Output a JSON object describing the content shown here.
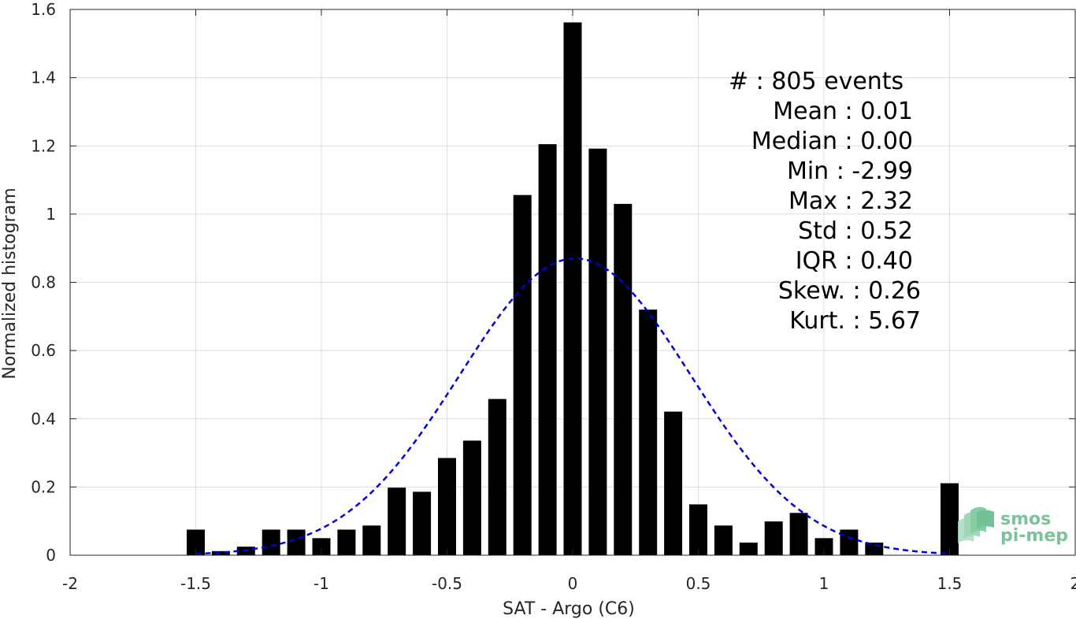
{
  "chart_data": {
    "type": "bar",
    "xlabel": "SAT - Argo (C6)",
    "ylabel": "Normalized histogram",
    "xlim": [
      -2,
      2
    ],
    "ylim": [
      0,
      1.6
    ],
    "xticks": [
      -2,
      -1.5,
      -1,
      -0.5,
      0,
      0.5,
      1,
      1.5,
      2
    ],
    "xtick_labels": [
      "-2",
      "-1.5",
      "-1",
      "-0.5",
      "0",
      "0.5",
      "1",
      "1.5",
      "2"
    ],
    "yticks": [
      0,
      0.2,
      0.4,
      0.6,
      0.8,
      1,
      1.2,
      1.4,
      1.6
    ],
    "ytick_labels": [
      "0",
      "0.2",
      "0.4",
      "0.6",
      "0.8",
      "1",
      "1.2",
      "1.4",
      "1.6"
    ],
    "grid": true,
    "bar_color": "#000000",
    "bins": [
      -1.5,
      -1.4,
      -1.3,
      -1.2,
      -1.1,
      -1.0,
      -0.9,
      -0.8,
      -0.7,
      -0.6,
      -0.5,
      -0.4,
      -0.3,
      -0.2,
      -0.1,
      0.0,
      0.1,
      0.2,
      0.3,
      0.4,
      0.5,
      0.6,
      0.7,
      0.8,
      0.9,
      1.0,
      1.1,
      1.2,
      1.5
    ],
    "values": [
      0.075,
      0.012,
      0.025,
      0.075,
      0.075,
      0.05,
      0.075,
      0.087,
      0.198,
      0.186,
      0.285,
      0.336,
      0.458,
      1.056,
      1.205,
      1.562,
      1.192,
      1.03,
      0.72,
      0.421,
      0.149,
      0.087,
      0.037,
      0.099,
      0.124,
      0.05,
      0.075,
      0.037,
      0.211
    ],
    "fit": {
      "type": "normal",
      "mean": 0.01,
      "std": 0.46,
      "peak": 0.87,
      "x_range": [
        -1.5,
        1.5
      ],
      "color": "#0000dd",
      "style": "dashed"
    }
  },
  "stats": {
    "lines": [
      "#  : 805 events",
      "Mean : 0.01",
      "Median : 0.00",
      "Min : -2.99",
      "Max : 2.32",
      "Std : 0.52",
      "IQR : 0.40",
      "Skew. : 0.26",
      "Kurt. : 5.67"
    ]
  },
  "logo": {
    "line1": "smos",
    "line2": "pi-mep",
    "color": "#7cc39a"
  }
}
